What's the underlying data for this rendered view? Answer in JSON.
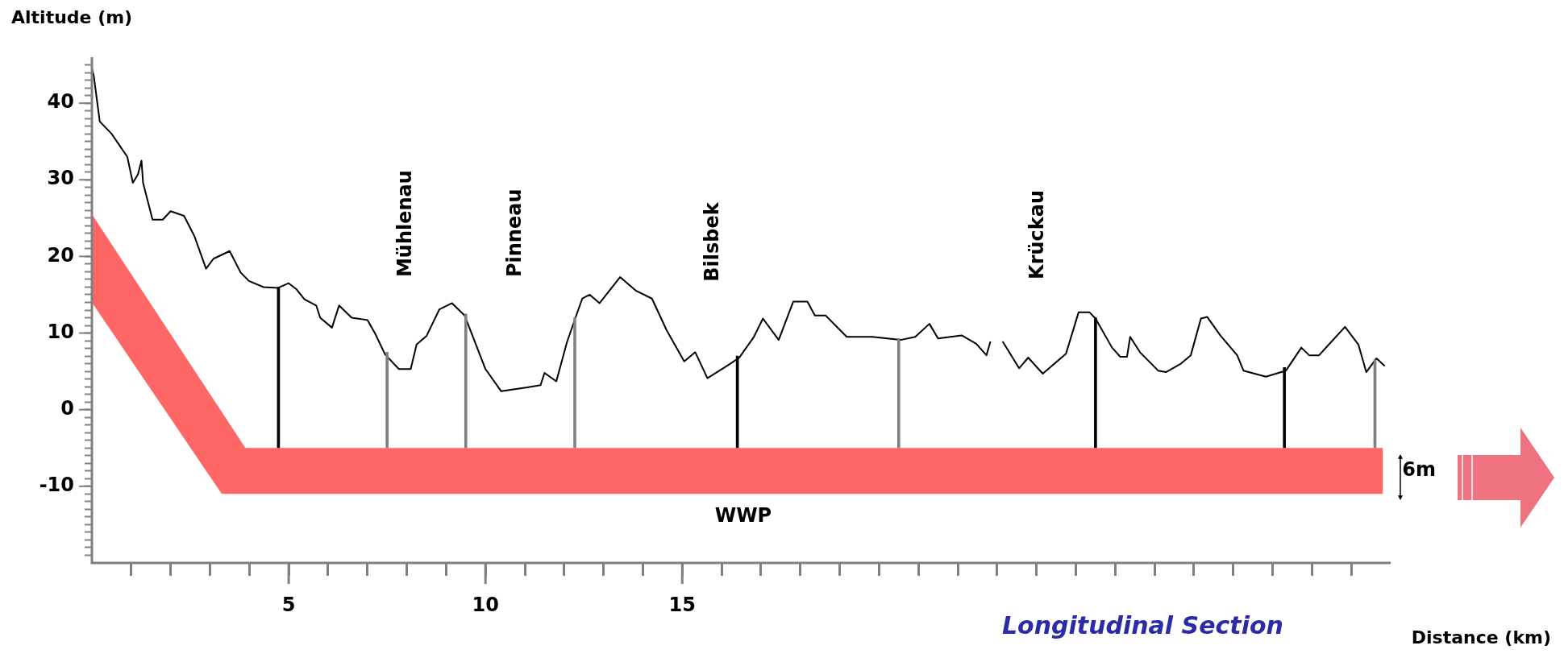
{
  "chart_data": {
    "type": "line",
    "title": "Longitudinal Section",
    "xlabel": "Distance (km)",
    "ylabel": "Altitude (m)",
    "xlim": [
      0,
      33
    ],
    "ylim": [
      -20,
      46
    ],
    "xticks": [
      {
        "value": 1,
        "label": null
      },
      {
        "value": 2,
        "label": null
      },
      {
        "value": 3,
        "label": null
      },
      {
        "value": 4,
        "label": null
      },
      5,
      {
        "value": 6,
        "label": null
      },
      {
        "value": 7,
        "label": null
      },
      {
        "value": 8,
        "label": null
      },
      {
        "value": 9,
        "label": null
      },
      10,
      {
        "value": 11,
        "label": null
      },
      {
        "value": 12,
        "label": null
      },
      {
        "value": 13,
        "label": null
      },
      {
        "value": 14,
        "label": null
      },
      15,
      {
        "value": 16,
        "label": null
      },
      {
        "value": 17,
        "label": null
      },
      {
        "value": 18,
        "label": null
      },
      {
        "value": 19,
        "label": null
      },
      {
        "value": 20,
        "label": null
      },
      {
        "value": 21,
        "label": null
      },
      {
        "value": 22,
        "label": null
      },
      {
        "value": 23,
        "label": null
      },
      {
        "value": 24,
        "label": null
      },
      {
        "value": 25,
        "label": null
      },
      {
        "value": 26,
        "label": null
      },
      {
        "value": 27,
        "label": null
      },
      {
        "value": 28,
        "label": null
      },
      {
        "value": 29,
        "label": null
      },
      {
        "value": 30,
        "label": null
      },
      {
        "value": 31,
        "label": null
      },
      {
        "value": 32,
        "label": null
      }
    ],
    "yticks": [
      {
        "value": -19,
        "label": null
      },
      {
        "value": -18,
        "label": null
      },
      {
        "value": -17,
        "label": null
      },
      {
        "value": -16,
        "label": null
      },
      {
        "value": -15,
        "label": null
      },
      {
        "value": -14,
        "label": null
      },
      {
        "value": -13,
        "label": null
      },
      {
        "value": -12,
        "label": null
      },
      {
        "value": -11,
        "label": null
      },
      -10,
      {
        "value": -9,
        "label": null
      },
      {
        "value": -8,
        "label": null
      },
      {
        "value": -7,
        "label": null
      },
      {
        "value": -6,
        "label": null
      },
      {
        "value": -5,
        "label": null
      },
      {
        "value": -4,
        "label": null
      },
      {
        "value": -3,
        "label": null
      },
      {
        "value": -2,
        "label": null
      },
      {
        "value": -1,
        "label": null
      },
      0,
      {
        "value": 1,
        "label": null
      },
      {
        "value": 2,
        "label": null
      },
      {
        "value": 3,
        "label": null
      },
      {
        "value": 4,
        "label": null
      },
      {
        "value": 5,
        "label": null
      },
      {
        "value": 6,
        "label": null
      },
      {
        "value": 7,
        "label": null
      },
      {
        "value": 8,
        "label": null
      },
      {
        "value": 9,
        "label": null
      },
      10,
      {
        "value": 11,
        "label": null
      },
      {
        "value": 12,
        "label": null
      },
      {
        "value": 13,
        "label": null
      },
      {
        "value": 14,
        "label": null
      },
      {
        "value": 15,
        "label": null
      },
      {
        "value": 16,
        "label": null
      },
      {
        "value": 17,
        "label": null
      },
      {
        "value": 18,
        "label": null
      },
      {
        "value": 19,
        "label": null
      },
      20,
      {
        "value": 21,
        "label": null
      },
      {
        "value": 22,
        "label": null
      },
      {
        "value": 23,
        "label": null
      },
      {
        "value": 24,
        "label": null
      },
      {
        "value": 25,
        "label": null
      },
      {
        "value": 26,
        "label": null
      },
      {
        "value": 27,
        "label": null
      },
      {
        "value": 28,
        "label": null
      },
      {
        "value": 29,
        "label": null
      },
      30,
      {
        "value": 31,
        "label": null
      },
      {
        "value": 32,
        "label": null
      },
      {
        "value": 33,
        "label": null
      },
      {
        "value": 34,
        "label": null
      },
      {
        "value": 35,
        "label": null
      },
      {
        "value": 36,
        "label": null
      },
      {
        "value": 37,
        "label": null
      },
      {
        "value": 38,
        "label": null
      },
      {
        "value": 39,
        "label": null
      },
      40,
      {
        "value": 41,
        "label": null
      },
      {
        "value": 42,
        "label": null
      },
      {
        "value": 43,
        "label": null
      },
      {
        "value": 44,
        "label": null
      },
      {
        "value": 45,
        "label": null
      }
    ],
    "marker": "none",
    "series": [
      {
        "type": "line",
        "name": "WWP",
        "x": [
          0,
          3.3,
          3.9,
          32.8
        ],
        "values": [
          null,
          null,
          null,
          null
        ],
        "upper": [
          25.5,
          -0.3,
          -5,
          -5
        ],
        "lower": [
          14,
          -11,
          -11,
          -11
        ]
      },
      {
        "type": "bar",
        "colors": [
          "#000000",
          "#808080",
          "#808080",
          "#808080",
          "#000000",
          "#808080",
          "#000000",
          "#000000",
          "#808080"
        ],
        "x": [
          4.74,
          7.5,
          9.5,
          12.27,
          16.4,
          20.5,
          25.5,
          30.3,
          32.6
        ],
        "base": [
          -5,
          -5,
          -5,
          -5,
          -5,
          -5,
          -5,
          -5,
          -5
        ],
        "values": [
          21,
          12.5,
          17.5,
          17,
          12,
          14.3,
          17,
          10.5,
          11.5
        ]
      },
      {
        "type": "line",
        "color": "#000000",
        "x": [
          0,
          0.05,
          0.13,
          0.2,
          0.5,
          0.9,
          1.04,
          1.17,
          1.26,
          1.3,
          1.54,
          1.8,
          2.0,
          2.34,
          2.6,
          2.9,
          3.09,
          3.5,
          3.78,
          3.99,
          4.36,
          4.73,
          5.0,
          5.2,
          5.4,
          5.7,
          5.8,
          6.1,
          6.28,
          6.6,
          7.0,
          7.2,
          7.45,
          7.8,
          8.1,
          8.25,
          8.5,
          8.83,
          9.15,
          9.47,
          10.0,
          10.4,
          11.06,
          11.4,
          11.5,
          11.8,
          12.07,
          12.28,
          12.46,
          12.65,
          12.9,
          13.42,
          13.83,
          14.23,
          14.6,
          15.05,
          15.33,
          15.64,
          16.19,
          16.45,
          16.82,
          17.05,
          17.45,
          17.82,
          18.18,
          18.37,
          18.64,
          19.18,
          19.83,
          20.55,
          20.92,
          21.28,
          21.5,
          22.1,
          22.47,
          22.73,
          22.83,
          22.98,
          23.14,
          23.56,
          23.79,
          24.16,
          24.75,
          25.07,
          25.35,
          25.5,
          25.92,
          26.13,
          26.3,
          26.38,
          26.63,
          27.09,
          27.29,
          27.67,
          27.92,
          28.18,
          28.34,
          28.67,
          29.1,
          29.26,
          29.83,
          30.34,
          30.73,
          30.93,
          31.18,
          31.5,
          31.84,
          32.18,
          32.38,
          32.64,
          32.85
        ],
        "values": [
          44.5,
          43.5,
          40.3,
          37.6,
          36,
          33,
          29.6,
          30.7,
          32.5,
          29.6,
          24.8,
          24.8,
          25.9,
          25.3,
          22.7,
          18.4,
          19.7,
          20.7,
          17.9,
          16.8,
          16,
          15.9,
          16.5,
          15.7,
          14.4,
          13.6,
          12,
          10.7,
          13.6,
          12,
          11.7,
          9.9,
          7.2,
          5.3,
          5.3,
          8.5,
          9.6,
          13.1,
          13.9,
          12.3,
          5.3,
          2.4,
          2.9,
          3.2,
          4.8,
          3.7,
          8.8,
          11.9,
          14.5,
          15,
          13.9,
          17.3,
          15.5,
          14.5,
          10.4,
          6.3,
          7.5,
          4.1,
          5.9,
          6.8,
          9.5,
          11.9,
          9.1,
          14.1,
          14.1,
          12.3,
          12.3,
          9.5,
          9.5,
          9.1,
          9.5,
          11.2,
          9.3,
          9.7,
          8.6,
          7.1,
          8.9,
          null,
          8.9,
          5.4,
          6.8,
          4.7,
          7.3,
          12.7,
          12.7,
          11.9,
          8.1,
          6.9,
          6.9,
          9.5,
          7.5,
          5.1,
          4.9,
          6,
          7.1,
          11.9,
          12.1,
          9.7,
          7.1,
          5.1,
          4.3,
          5.1,
          8.1,
          7.1,
          7.1,
          8.9,
          10.8,
          8.5,
          4.9,
          6.7,
          5.7
        ]
      }
    ],
    "annotations": [
      "Mühlenau",
      "Pinneau",
      "Bilsbek",
      "Krückau",
      "6m"
    ]
  }
}
